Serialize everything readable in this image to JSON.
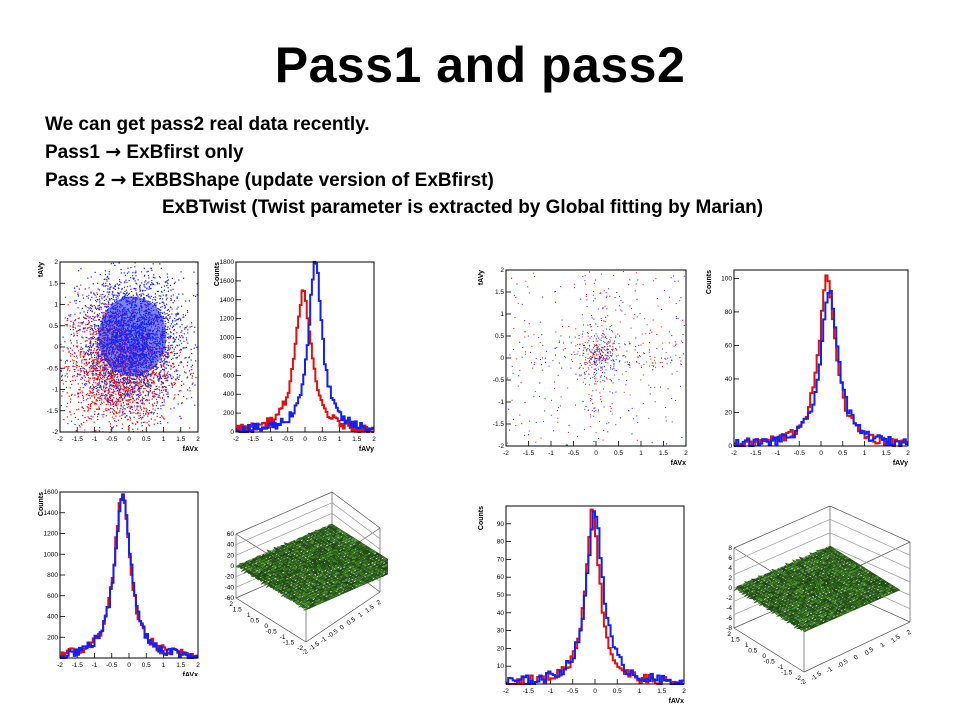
{
  "title": "Pass1 and pass2",
  "lines": {
    "l1": "We can get pass2 real data recently.",
    "l2_a": "Pass1 ",
    "l2_arrow": "→",
    "l2_b": " ExBfirst only",
    "l3_a": "Pass 2 ",
    "l3_arrow": "→",
    "l3_b": " ExBBShape (update version of ExBfirst)",
    "l4": "ExBTwist (Twist parameter is extracted by Global fitting by Marian)"
  },
  "colors": {
    "pass1": "#e01010",
    "pass2": "#1020ff",
    "surface": "#2f6a18"
  },
  "chart_data": [
    {
      "type": "scatter",
      "panel": "left-top-1",
      "xlabel": "fAVx",
      "ylabel": "fAVy",
      "xlim": [
        -2,
        2
      ],
      "ylim": [
        -2,
        2
      ],
      "xticks": [
        "-2",
        "-1.5",
        "-1",
        "-0.5",
        "0",
        "0.5",
        "1",
        "1.5",
        "2"
      ],
      "yticks": [
        "-2",
        "-1.5",
        "-1",
        "-0.5",
        "0",
        "0.5",
        "1",
        "1.5",
        "2"
      ],
      "series": [
        {
          "color": "red",
          "center": [
            -0.3,
            -0.4
          ]
        },
        {
          "color": "blue",
          "center": [
            0.1,
            0.2
          ]
        }
      ]
    },
    {
      "type": "line",
      "panel": "left-top-2",
      "xlabel": "fAVy",
      "ylabel": "Counts",
      "xlim": [
        -2,
        2
      ],
      "ylim": [
        0,
        1800
      ],
      "xticks": [
        "-2",
        "-1.5",
        "-1",
        "-0.5",
        "0",
        "0.5",
        "1",
        "1.5",
        "2"
      ],
      "yticks": [
        "0",
        "200",
        "400",
        "600",
        "800",
        "1000",
        "1200",
        "1400",
        "1600",
        "1800"
      ],
      "series": [
        {
          "color": "red",
          "peak": [
            -0.05,
            1490
          ],
          "width": 0.35
        },
        {
          "color": "blue",
          "peak": [
            0.3,
            1800
          ],
          "width": 0.3
        }
      ]
    },
    {
      "type": "line",
      "panel": "left-bottom-1",
      "xlabel": "fAVx",
      "ylabel": "Counts",
      "xlim": [
        -2,
        2
      ],
      "ylim": [
        0,
        1600
      ],
      "xticks": [
        "-2",
        "-1.5",
        "-1",
        "-0.5",
        "0",
        "0.5",
        "1",
        "1.5",
        "2"
      ],
      "yticks": [
        "200",
        "400",
        "600",
        "800",
        "1000",
        "1200",
        "1400",
        "1600"
      ],
      "series": [
        {
          "color": "red",
          "peak": [
            -0.2,
            1570
          ],
          "width": 0.35
        },
        {
          "color": "blue",
          "peak": [
            -0.18,
            1600
          ],
          "width": 0.35
        }
      ]
    },
    {
      "type": "surface",
      "panel": "left-bottom-2",
      "zticks": [
        "60",
        "40",
        "20",
        "0",
        "-20",
        "-40",
        "-60"
      ],
      "xticks": [
        "-2",
        "-1.5",
        "-1",
        "-0.5",
        "0",
        "0.5",
        "1",
        "1.5",
        "2"
      ],
      "yticks": [
        "2",
        "1.5",
        "1",
        "0.5",
        "0",
        "-0.5",
        "-1",
        "-1.5",
        "-2"
      ]
    },
    {
      "type": "scatter",
      "panel": "right-top-1",
      "xlabel": "fAVx",
      "ylabel": "fAVy",
      "xlim": [
        -2,
        2
      ],
      "ylim": [
        -2,
        2
      ],
      "xticks": [
        "-2",
        "-1.5",
        "-1",
        "-0.5",
        "0",
        "0.5",
        "1",
        "1.5",
        "2"
      ],
      "yticks": [
        "-2",
        "-1.5",
        "-1",
        "-0.5",
        "0",
        "0.5",
        "1",
        "1.5",
        "2"
      ],
      "series": [
        {
          "color": "red",
          "center": [
            0,
            0.1
          ]
        },
        {
          "color": "blue",
          "center": [
            0.1,
            0.1
          ]
        }
      ]
    },
    {
      "type": "line",
      "panel": "right-top-2",
      "xlabel": "fAVy",
      "ylabel": "Counts",
      "xlim": [
        -2,
        2
      ],
      "ylim": [
        0,
        105
      ],
      "xticks": [
        "-2",
        "-1.5",
        "-1",
        "-0.5",
        "0",
        "0.5",
        "1",
        "1.5",
        "2"
      ],
      "yticks": [
        "0",
        "20",
        "40",
        "60",
        "80",
        "100"
      ],
      "series": [
        {
          "color": "red",
          "peak": [
            0.15,
            100
          ],
          "width": 0.3
        },
        {
          "color": "blue",
          "peak": [
            0.2,
            93
          ],
          "width": 0.3
        }
      ]
    },
    {
      "type": "line",
      "panel": "right-bottom-1",
      "xlabel": "fAVx",
      "ylabel": "Counts",
      "xlim": [
        -2,
        2
      ],
      "ylim": [
        0,
        100
      ],
      "xticks": [
        "-2",
        "-1.5",
        "-1",
        "-0.5",
        "0",
        "0.5",
        "1",
        "1.5",
        "2"
      ],
      "yticks": [
        "10",
        "20",
        "30",
        "40",
        "50",
        "60",
        "70",
        "80",
        "90"
      ],
      "series": [
        {
          "color": "red",
          "peak": [
            -0.05,
            97
          ],
          "width": 0.25
        },
        {
          "color": "blue",
          "peak": [
            0,
            97
          ],
          "width": 0.28
        }
      ]
    },
    {
      "type": "surface",
      "panel": "right-bottom-2",
      "zticks": [
        "8",
        "6",
        "4",
        "2",
        "0",
        "-2",
        "-4",
        "-6",
        "-8"
      ],
      "xticks": [
        "-2",
        "-1.5",
        "-1",
        "-0.5",
        "0",
        "0.5",
        "1",
        "1.5",
        "2"
      ],
      "yticks": [
        "2",
        "1.5",
        "1",
        "0.5",
        "0",
        "-0.5",
        "-1",
        "-1.5",
        "-2"
      ]
    }
  ]
}
